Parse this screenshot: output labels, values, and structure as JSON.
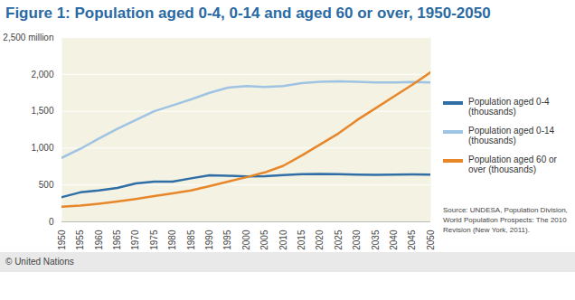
{
  "chart_data": {
    "type": "line",
    "title": "Figure 1: Population aged 0-4, 0-14 and aged 60 or over, 1950-2050",
    "x": [
      1950,
      1955,
      1960,
      1965,
      1970,
      1975,
      1980,
      1985,
      1990,
      1995,
      2000,
      2005,
      2010,
      2015,
      2020,
      2025,
      2030,
      2035,
      2040,
      2045,
      2050
    ],
    "series": [
      {
        "name": "Population aged 0-4 (thousands)",
        "color": "#2f6fa6",
        "values": [
          335,
          400,
          425,
          460,
          520,
          545,
          545,
          590,
          630,
          625,
          615,
          620,
          635,
          645,
          648,
          645,
          640,
          638,
          640,
          642,
          640
        ]
      },
      {
        "name": "Population aged 0-14 (thousands)",
        "color": "#9fc4e3",
        "values": [
          870,
          990,
          1130,
          1260,
          1380,
          1500,
          1580,
          1660,
          1750,
          1820,
          1840,
          1830,
          1840,
          1880,
          1900,
          1905,
          1900,
          1890,
          1890,
          1895,
          1890
        ]
      },
      {
        "name": "Population aged 60 or over (thousands)",
        "color": "#e8862a",
        "values": [
          205,
          220,
          245,
          275,
          310,
          350,
          385,
          425,
          485,
          545,
          605,
          670,
          760,
          900,
          1050,
          1200,
          1380,
          1540,
          1700,
          1860,
          2030
        ]
      }
    ],
    "xlim": [
      1950,
      2050
    ],
    "xticks": [
      1950,
      1955,
      1960,
      1965,
      1970,
      1975,
      1980,
      1985,
      1990,
      1995,
      2000,
      2005,
      2010,
      2015,
      2020,
      2025,
      2030,
      2035,
      2040,
      2045,
      2050
    ],
    "ylim": [
      0,
      2500
    ],
    "yticks": [
      0,
      500,
      {
        "value": 1000,
        "label": "1,000"
      },
      {
        "value": 1500,
        "label": "1,500"
      },
      {
        "value": 2000,
        "label": "2,000"
      },
      {
        "value": 2500,
        "label": "2,500 million"
      }
    ],
    "grid": true,
    "legend": "right",
    "source": "Source: UNDESA, Population Division, World Population Prospects: The 2010 Revision (New York, 2011).",
    "credit": "© United Nations"
  }
}
